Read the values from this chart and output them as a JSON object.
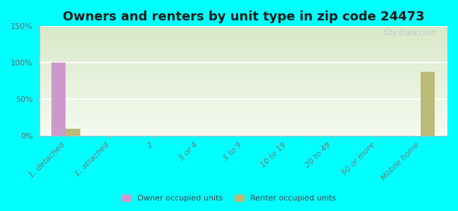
{
  "title": "Owners and renters by unit type in zip code 24473",
  "categories": [
    "1, detached",
    "1, attached",
    "2",
    "3 or 4",
    "5 to 9",
    "10 to 19",
    "20 to 49",
    "50 or more",
    "Mobile home"
  ],
  "owner_values": [
    100,
    0,
    0,
    0,
    0,
    0,
    0,
    0,
    0
  ],
  "renter_values": [
    10,
    0,
    0,
    0,
    0,
    0,
    0,
    0,
    88
  ],
  "owner_color": "#cc99cc",
  "renter_color": "#bbbb77",
  "background_color": "#00ffff",
  "plot_bg_top": "#d8e8c8",
  "plot_bg_bottom": "#f5faf0",
  "ylim": [
    0,
    150
  ],
  "yticks": [
    0,
    50,
    100,
    150
  ],
  "ytick_labels": [
    "0%",
    "50%",
    "100%",
    "150%"
  ],
  "watermark": "City-Data.com",
  "legend_labels": [
    "Owner occupied units",
    "Renter occupied units"
  ],
  "title_fontsize": 13,
  "bar_width": 0.32
}
